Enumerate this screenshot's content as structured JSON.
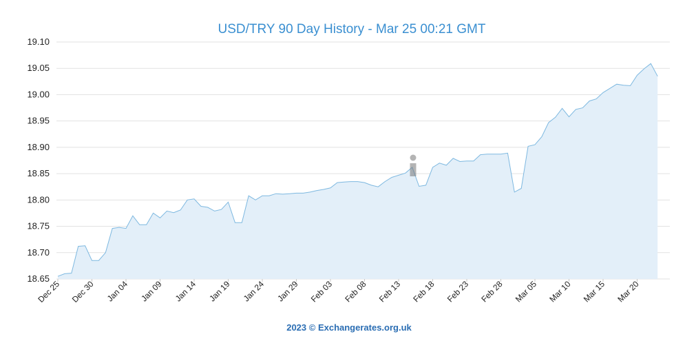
{
  "chart_data": {
    "type": "area",
    "title": "USD/TRY 90 Day History - Mar 25 00:21 GMT",
    "xlabel": "",
    "ylabel": "",
    "ylim": [
      18.65,
      19.1
    ],
    "yticks": [
      "18.65",
      "18.70",
      "18.75",
      "18.80",
      "18.85",
      "18.90",
      "18.95",
      "19.00",
      "19.05",
      "19.10"
    ],
    "xticks": [
      "Dec 25",
      "Dec 30",
      "Jan 04",
      "Jan 09",
      "Jan 14",
      "Jan 19",
      "Jan 24",
      "Jan 29",
      "Feb 03",
      "Feb 08",
      "Feb 13",
      "Feb 18",
      "Feb 23",
      "Feb 28",
      "Mar 05",
      "Mar 10",
      "Mar 15",
      "Mar 20"
    ],
    "grid": true,
    "line_color": "#7db8e0",
    "fill_color": "#e3eff9",
    "series": [
      {
        "values": [
          18.655,
          18.66,
          18.661,
          18.712,
          18.713,
          18.685,
          18.685,
          18.7,
          18.746,
          18.748,
          18.746,
          18.77,
          18.753,
          18.753,
          18.775,
          18.766,
          18.779,
          18.776,
          18.781,
          18.8,
          18.802,
          18.788,
          18.786,
          18.779,
          18.782,
          18.796,
          18.757,
          18.757,
          18.808,
          18.8,
          18.808,
          18.808,
          18.812,
          18.811,
          18.812,
          18.813,
          18.813,
          18.815,
          18.818,
          18.82,
          18.823,
          18.833,
          18.834,
          18.835,
          18.835,
          18.833,
          18.828,
          18.825,
          18.835,
          18.843,
          18.847,
          18.851,
          18.862,
          18.826,
          18.828,
          18.862,
          18.87,
          18.866,
          18.879,
          18.873,
          18.874,
          18.874,
          18.886,
          18.887,
          18.887,
          18.887,
          18.889,
          18.815,
          18.822,
          18.902,
          18.905,
          18.92,
          18.947,
          18.957,
          18.974,
          18.958,
          18.972,
          18.975,
          18.988,
          18.992,
          19.004,
          19.012,
          19.02,
          19.018,
          19.017,
          19.037,
          19.049,
          19.059,
          19.035
        ]
      }
    ]
  },
  "credit": "2023 © Exchangerates.org.uk",
  "watermark": "ExchangeRates.org.uk"
}
